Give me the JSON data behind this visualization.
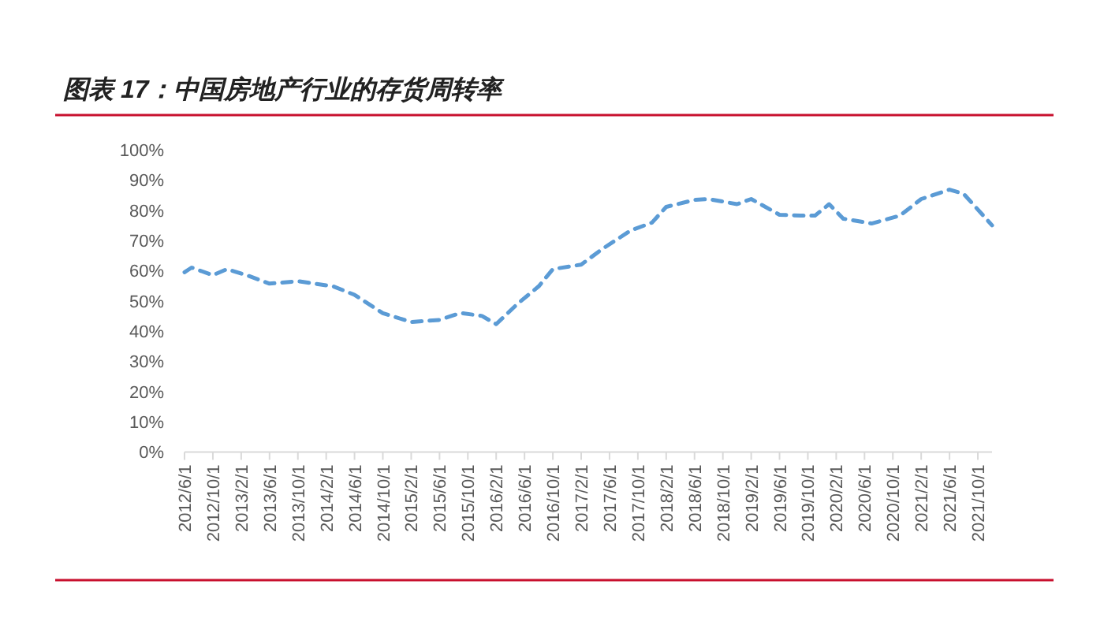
{
  "chart_data": {
    "type": "line",
    "title": "图表 17：中国房地产行业的存货周转率",
    "x": [
      "2012-06",
      "2012-07",
      "2012-10",
      "2012-12",
      "2013-03",
      "2013-06",
      "2013-10",
      "2014-03",
      "2014-06",
      "2014-10",
      "2015-02",
      "2015-06",
      "2015-09",
      "2015-12",
      "2016-02",
      "2016-05",
      "2016-08",
      "2016-10",
      "2017-02",
      "2017-05",
      "2017-09",
      "2017-12",
      "2018-02",
      "2018-06",
      "2018-08",
      "2018-12",
      "2019-02",
      "2019-06",
      "2019-09",
      "2019-11",
      "2020-01",
      "2020-03",
      "2020-07",
      "2020-11",
      "2021-02",
      "2021-06",
      "2021-08",
      "2021-12"
    ],
    "series": [
      {
        "color": "#5b9bd5",
        "values": [
          59.5,
          61,
          58.5,
          60.5,
          58.3,
          55.7,
          56.5,
          54.8,
          52,
          45.9,
          43,
          43.7,
          46,
          45,
          42.3,
          49,
          54.8,
          60.5,
          62,
          67.2,
          73.3,
          75.9,
          81.1,
          83.4,
          83.7,
          82,
          83.7,
          78.5,
          78.2,
          78.2,
          82,
          77.2,
          75.6,
          78.2,
          83.7,
          86.8,
          85.4,
          75
        ]
      }
    ],
    "xlim": [
      "2012-06",
      "2021-12"
    ],
    "xticks": [
      {
        "value": "2012-06",
        "label": "2012/6/1"
      },
      {
        "value": "2012-10",
        "label": "2012/10/1"
      },
      {
        "value": "2013-02",
        "label": "2013/2/1"
      },
      {
        "value": "2013-06",
        "label": "2013/6/1"
      },
      {
        "value": "2013-10",
        "label": "2013/10/1"
      },
      {
        "value": "2014-02",
        "label": "2014/2/1"
      },
      {
        "value": "2014-06",
        "label": "2014/6/1"
      },
      {
        "value": "2014-10",
        "label": "2014/10/1"
      },
      {
        "value": "2015-02",
        "label": "2015/2/1"
      },
      {
        "value": "2015-06",
        "label": "2015/6/1"
      },
      {
        "value": "2015-10",
        "label": "2015/10/1"
      },
      {
        "value": "2016-02",
        "label": "2016/2/1"
      },
      {
        "value": "2016-06",
        "label": "2016/6/1"
      },
      {
        "value": "2016-10",
        "label": "2016/10/1"
      },
      {
        "value": "2017-02",
        "label": "2017/2/1"
      },
      {
        "value": "2017-06",
        "label": "2017/6/1"
      },
      {
        "value": "2017-10",
        "label": "2017/10/1"
      },
      {
        "value": "2018-02",
        "label": "2018/2/1"
      },
      {
        "value": "2018-06",
        "label": "2018/6/1"
      },
      {
        "value": "2018-10",
        "label": "2018/10/1"
      },
      {
        "value": "2019-02",
        "label": "2019/2/1"
      },
      {
        "value": "2019-06",
        "label": "2019/6/1"
      },
      {
        "value": "2019-10",
        "label": "2019/10/1"
      },
      {
        "value": "2020-02",
        "label": "2020/2/1"
      },
      {
        "value": "2020-06",
        "label": "2020/6/1"
      },
      {
        "value": "2020-10",
        "label": "2020/10/1"
      },
      {
        "value": "2021-02",
        "label": "2021/2/1"
      },
      {
        "value": "2021-06",
        "label": "2021/6/1"
      },
      {
        "value": "2021-10",
        "label": "2021/10/1"
      }
    ],
    "ylim": [
      0,
      100
    ],
    "yticks": [
      {
        "value": 0,
        "label": "0%"
      },
      {
        "value": 10,
        "label": "10%"
      },
      {
        "value": 20,
        "label": "20%"
      },
      {
        "value": 30,
        "label": "30%"
      },
      {
        "value": 40,
        "label": "40%"
      },
      {
        "value": 50,
        "label": "50%"
      },
      {
        "value": 60,
        "label": "60%"
      },
      {
        "value": 70,
        "label": "70%"
      },
      {
        "value": 80,
        "label": "80%"
      },
      {
        "value": 90,
        "label": "90%"
      },
      {
        "value": 100,
        "label": "100%"
      }
    ],
    "grid": false,
    "marker": "none",
    "line_style": "dashed"
  }
}
